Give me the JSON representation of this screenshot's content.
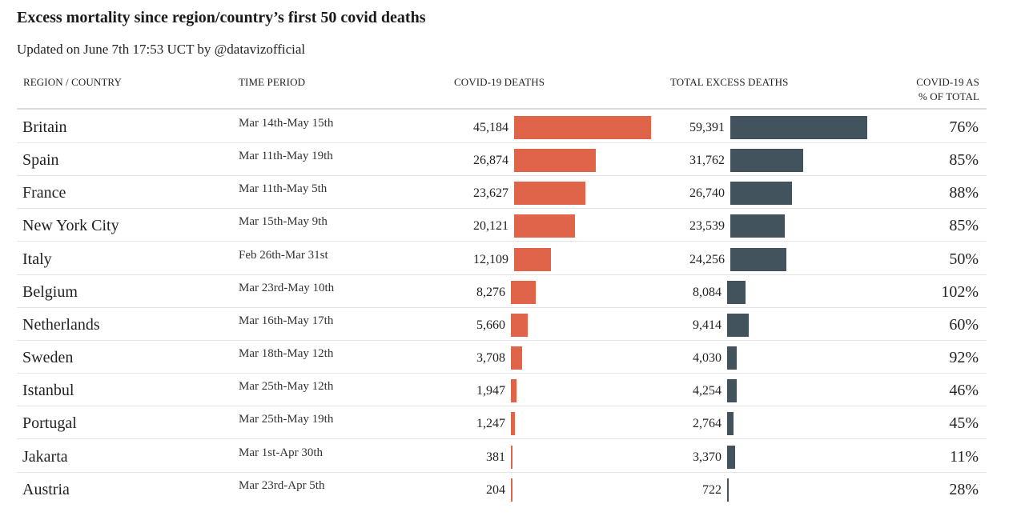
{
  "title": "Excess mortality since region/country’s first 50 covid deaths",
  "subtitle": "Updated on June 7th 17:53 UCT by @datavizofficial",
  "headers": {
    "region": "REGION / COUNTRY",
    "period": "TIME PERIOD",
    "covid": "COVID-19 DEATHS",
    "excess": "TOTAL EXCESS DEATHS",
    "pct_line1": "COVID-19 AS",
    "pct_line2": "% OF TOTAL"
  },
  "colors": {
    "covid_bar": "#e0644a",
    "excess_bar": "#42535e"
  },
  "chart_data": {
    "type": "table",
    "columns": [
      "REGION / COUNTRY",
      "TIME PERIOD",
      "COVID-19 DEATHS",
      "TOTAL EXCESS DEATHS",
      "COVID-19 AS % OF TOTAL"
    ],
    "rows": [
      {
        "region": "Britain",
        "period": "Mar 14th-May 15th",
        "covid": 45184,
        "covid_label": "45,184",
        "excess": 59391,
        "excess_label": "59,391",
        "pct": "76%"
      },
      {
        "region": "Spain",
        "period": "Mar 11th-May 19th",
        "covid": 26874,
        "covid_label": "26,874",
        "excess": 31762,
        "excess_label": "31,762",
        "pct": "85%"
      },
      {
        "region": "France",
        "period": "Mar 11th-May 5th",
        "covid": 23627,
        "covid_label": "23,627",
        "excess": 26740,
        "excess_label": "26,740",
        "pct": "88%"
      },
      {
        "region": "New York City",
        "period": "Mar 15th-May 9th",
        "covid": 20121,
        "covid_label": "20,121",
        "excess": 23539,
        "excess_label": "23,539",
        "pct": "85%"
      },
      {
        "region": "Italy",
        "period": "Feb 26th-Mar 31st",
        "covid": 12109,
        "covid_label": "12,109",
        "excess": 24256,
        "excess_label": "24,256",
        "pct": "50%"
      },
      {
        "region": "Belgium",
        "period": "Mar 23rd-May 10th",
        "covid": 8276,
        "covid_label": "8,276",
        "excess": 8084,
        "excess_label": "8,084",
        "pct": "102%"
      },
      {
        "region": "Netherlands",
        "period": "Mar 16th-May 17th",
        "covid": 5660,
        "covid_label": "5,660",
        "excess": 9414,
        "excess_label": "9,414",
        "pct": "60%"
      },
      {
        "region": "Sweden",
        "period": "Mar 18th-May 12th",
        "covid": 3708,
        "covid_label": "3,708",
        "excess": 4030,
        "excess_label": "4,030",
        "pct": "92%"
      },
      {
        "region": "Istanbul",
        "period": "Mar 25th-May 12th",
        "covid": 1947,
        "covid_label": "1,947",
        "excess": 4254,
        "excess_label": "4,254",
        "pct": "46%"
      },
      {
        "region": "Portugal",
        "period": "Mar 25th-May 19th",
        "covid": 1247,
        "covid_label": "1,247",
        "excess": 2764,
        "excess_label": "2,764",
        "pct": "45%"
      },
      {
        "region": "Jakarta",
        "period": "Mar 1st-Apr 30th",
        "covid": 381,
        "covid_label": "381",
        "excess": 3370,
        "excess_label": "3,370",
        "pct": "11%"
      },
      {
        "region": "Austria",
        "period": "Mar 23rd-Apr 5th",
        "covid": 204,
        "covid_label": "204",
        "excess": 722,
        "excess_label": "722",
        "pct": "28%"
      }
    ]
  }
}
